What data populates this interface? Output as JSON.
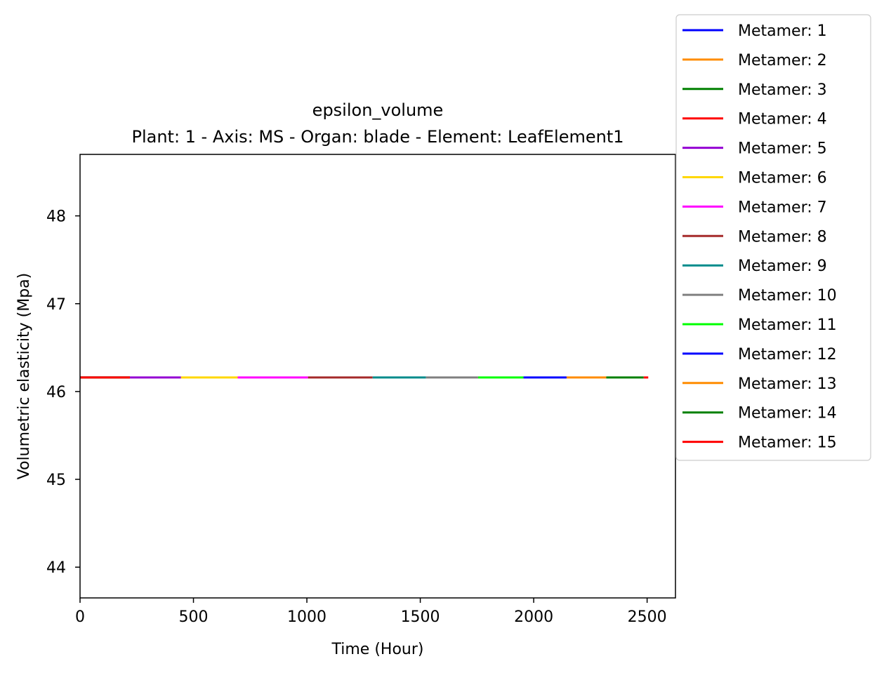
{
  "chart_data": {
    "type": "line",
    "title": "epsilon_volume",
    "subtitle": "Plant: 1 - Axis: MS - Organ: blade - Element: LeafElement1",
    "xlabel": "Time (Hour)",
    "ylabel": "Volumetric elasticity (Mpa)",
    "xlim": [
      0,
      2625
    ],
    "ylim": [
      43.65,
      48.7
    ],
    "xticks": [
      0,
      500,
      1000,
      1500,
      2000,
      2500
    ],
    "xtick_labels": [
      "0",
      "500",
      "1000",
      "1500",
      "2000",
      "2500"
    ],
    "yticks": [
      44,
      45,
      46,
      47,
      48
    ],
    "ytick_labels": [
      "44",
      "45",
      "46",
      "47",
      "48"
    ],
    "grid": false,
    "legend_position": "upper-right-outside",
    "series": [
      {
        "name": "Metamer: 1",
        "color": "#0000ff",
        "x": [
          0,
          220
        ],
        "y": [
          46.16,
          46.16
        ]
      },
      {
        "name": "Metamer: 2",
        "color": "#ff8c00",
        "x": [
          0,
          220
        ],
        "y": [
          46.16,
          46.16
        ]
      },
      {
        "name": "Metamer: 3",
        "color": "#008000",
        "x": [
          0,
          220
        ],
        "y": [
          46.16,
          46.16
        ]
      },
      {
        "name": "Metamer: 4",
        "color": "#ff0000",
        "x": [
          0,
          220
        ],
        "y": [
          46.16,
          46.16
        ]
      },
      {
        "name": "Metamer: 5",
        "color": "#9400d3",
        "x": [
          220,
          445
        ],
        "y": [
          46.16,
          46.16
        ]
      },
      {
        "name": "Metamer: 6",
        "color": "#ffd700",
        "x": [
          445,
          695
        ],
        "y": [
          46.16,
          46.16
        ]
      },
      {
        "name": "Metamer: 7",
        "color": "#ff00ff",
        "x": [
          695,
          1005
        ],
        "y": [
          46.16,
          46.16
        ]
      },
      {
        "name": "Metamer: 8",
        "color": "#a52a2a",
        "x": [
          1005,
          1290
        ],
        "y": [
          46.16,
          46.16
        ]
      },
      {
        "name": "Metamer: 9",
        "color": "#008b8b",
        "x": [
          1290,
          1525
        ],
        "y": [
          46.16,
          46.16
        ]
      },
      {
        "name": "Metamer: 10",
        "color": "#808080",
        "x": [
          1525,
          1755
        ],
        "y": [
          46.16,
          46.16
        ]
      },
      {
        "name": "Metamer: 11",
        "color": "#00ff00",
        "x": [
          1755,
          1955
        ],
        "y": [
          46.16,
          46.16
        ]
      },
      {
        "name": "Metamer: 12",
        "color": "#0000ff",
        "x": [
          1955,
          2145
        ],
        "y": [
          46.16,
          46.16
        ]
      },
      {
        "name": "Metamer: 13",
        "color": "#ff8c00",
        "x": [
          2145,
          2320
        ],
        "y": [
          46.16,
          46.16
        ]
      },
      {
        "name": "Metamer: 14",
        "color": "#008000",
        "x": [
          2320,
          2485
        ],
        "y": [
          46.16,
          46.16
        ]
      },
      {
        "name": "Metamer: 15",
        "color": "#ff0000",
        "x": [
          2485,
          2505
        ],
        "y": [
          46.16,
          46.16
        ]
      }
    ]
  }
}
